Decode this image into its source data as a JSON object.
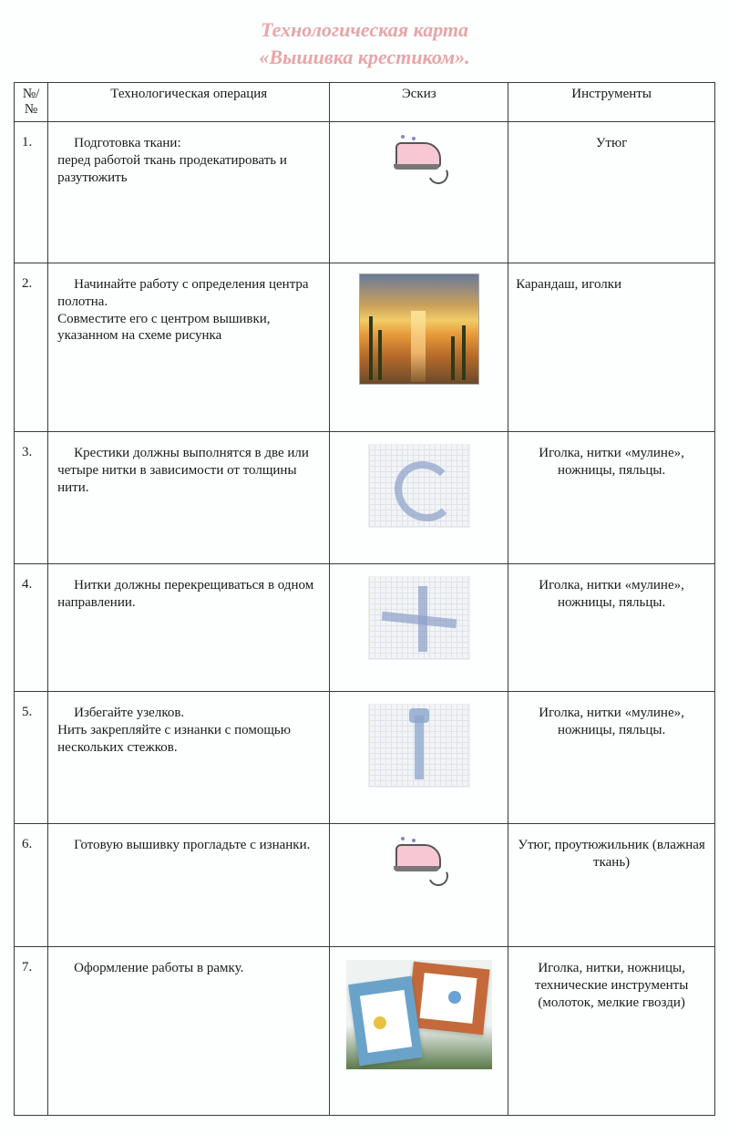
{
  "title_line1": "Технологическая карта",
  "title_line2": "«Вышивка крестиком».",
  "columns": {
    "num": "№/\n№",
    "operation": "Технологическая операция",
    "sketch": "Эскиз",
    "tools": "Инструменты"
  },
  "rows": [
    {
      "num": "1.",
      "operation_lead": "Подготовка ткани:",
      "operation_rest": "перед работой ткань продекатировать и разутюжить",
      "tools": "Утюг",
      "tools_align": "center",
      "sketch": "iron"
    },
    {
      "num": "2.",
      "operation_lead": "Начинайте работу с определения центра полотна.",
      "operation_rest": "Совместите его с центром вышивки, указанном на схеме рисунка",
      "tools": "Карандаш, иголки",
      "tools_align": "left",
      "sketch": "sunset"
    },
    {
      "num": "3.",
      "operation_lead": "Крестики должны выполнятся в две или четыре нитки в зависимости от толщины нити.",
      "operation_rest": "",
      "tools": "Иголка, нитки «мулине», ножницы, пяльцы.",
      "tools_align": "center",
      "sketch": "canvas loop"
    },
    {
      "num": "4.",
      "operation_lead": "Нитки должны перекрещиваться в одном направлении.",
      "operation_rest": "",
      "tools": "Иголка, нитки «мулине», ножницы, пяльцы.",
      "tools_align": "center",
      "sketch": "canvas cross"
    },
    {
      "num": "5.",
      "operation_lead": "Избегайте узелков.",
      "operation_rest": "Нить закрепляйте с изнанки с помощью нескольких стежков.",
      "tools": "Иголка, нитки «мулине», ножницы, пяльцы.",
      "tools_align": "center",
      "sketch": "canvas knot"
    },
    {
      "num": "6.",
      "operation_lead": "Готовую вышивку прогладьте с изнанки.",
      "operation_rest": "",
      "tools": "Утюг, проутюжильник (влажная ткань)",
      "tools_align": "center",
      "sketch": "iron"
    },
    {
      "num": "7.",
      "operation_lead": "Оформление работы в рамку.",
      "operation_rest": "",
      "tools": "Иголка, нитки, ножницы, технические инструменты (молоток, мелкие гвозди)",
      "tools_align": "center",
      "sketch": "frames"
    }
  ],
  "style": {
    "title_color": "#e8a5a8",
    "border_color": "#3a3a3a",
    "body_font": "Times New Roman",
    "page_bg": "#fdfefe",
    "title_fontsize_pt": 17,
    "cell_fontsize_pt": 11
  }
}
